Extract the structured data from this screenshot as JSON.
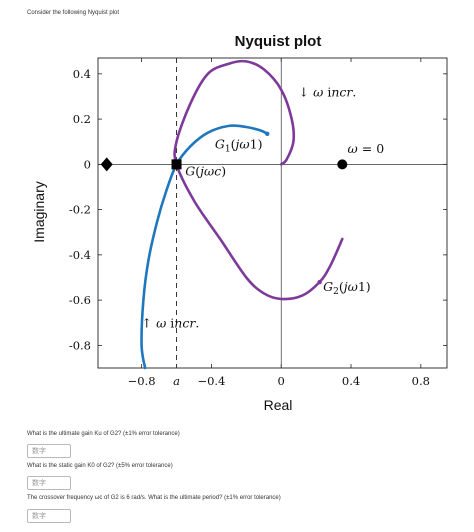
{
  "intro": "Consider the following Nyquist plot",
  "chart_data": {
    "type": "line",
    "title": "Nyquist plot",
    "xlabel": "Real",
    "ylabel": "Imaginary",
    "xlim": [
      -1.05,
      0.95
    ],
    "ylim": [
      -0.9,
      0.47
    ],
    "xticks": [
      {
        "v": -0.8,
        "label": "−0.8"
      },
      {
        "v": -0.6,
        "label": "a"
      },
      {
        "v": -0.4,
        "label": "−0.4"
      },
      {
        "v": 0,
        "label": "0"
      },
      {
        "v": 0.4,
        "label": "0.4"
      },
      {
        "v": 0.8,
        "label": "0.8"
      }
    ],
    "yticks": [
      {
        "v": 0.4,
        "label": "0.4"
      },
      {
        "v": 0.2,
        "label": "0.2"
      },
      {
        "v": 0,
        "label": "0"
      },
      {
        "v": -0.2,
        "label": "-0.2"
      },
      {
        "v": -0.4,
        "label": "-0.4"
      },
      {
        "v": -0.6,
        "label": "-0.6"
      },
      {
        "v": -0.8,
        "label": "-0.8"
      }
    ],
    "grid": false,
    "vline": {
      "x": -0.6,
      "style": "dashed"
    },
    "series": [
      {
        "name": "G1(jω1)",
        "color": "#1f77bd",
        "points": [
          [
            -0.78,
            -0.9
          ],
          [
            -0.8,
            -0.8
          ],
          [
            -0.79,
            -0.6
          ],
          [
            -0.76,
            -0.42
          ],
          [
            -0.71,
            -0.25
          ],
          [
            -0.66,
            -0.12
          ],
          [
            -0.6,
            0
          ],
          [
            -0.52,
            0.08
          ],
          [
            -0.42,
            0.14
          ],
          [
            -0.3,
            0.17
          ],
          [
            -0.2,
            0.165
          ],
          [
            -0.12,
            0.15
          ],
          [
            -0.08,
            0.135
          ]
        ]
      },
      {
        "name": "G2(jω1)",
        "color": "#7d3a9a",
        "points": [
          [
            0.35,
            -0.33
          ],
          [
            0.28,
            -0.45
          ],
          [
            0.22,
            -0.52
          ],
          [
            0.12,
            -0.58
          ],
          [
            0,
            -0.595
          ],
          [
            -0.1,
            -0.57
          ],
          [
            -0.2,
            -0.5
          ],
          [
            -0.35,
            -0.33
          ],
          [
            -0.5,
            -0.16
          ],
          [
            -0.6,
            0
          ],
          [
            -0.6,
            0.1
          ],
          [
            -0.52,
            0.27
          ],
          [
            -0.42,
            0.4
          ],
          [
            -0.3,
            0.445
          ],
          [
            -0.2,
            0.455
          ],
          [
            -0.1,
            0.42
          ],
          [
            0,
            0.33
          ],
          [
            0.06,
            0.2
          ],
          [
            0.07,
            0.1
          ],
          [
            0.03,
            0.02
          ],
          [
            0,
            0
          ]
        ]
      }
    ],
    "markers": [
      {
        "label": "ω = 0",
        "x": 0.35,
        "y": 0,
        "shape": "circle"
      },
      {
        "label": "G(jωc)",
        "x": -0.6,
        "y": 0,
        "shape": "square"
      },
      {
        "label": "",
        "x": -1.0,
        "y": 0,
        "shape": "diamond"
      }
    ],
    "annotations": [
      {
        "text": "↓ ω incr.",
        "x": 0.1,
        "y": 0.3
      },
      {
        "text": "↑ ω incr.",
        "x": -0.8,
        "y": -0.72
      },
      {
        "text": "G1(jω1)",
        "x": -0.38,
        "y": 0.07
      },
      {
        "text": "G(jωc)",
        "x": -0.55,
        "y": -0.05
      },
      {
        "text": "ω = 0",
        "x": 0.38,
        "y": 0.05
      },
      {
        "text": "G2(jω1)",
        "x": 0.24,
        "y": -0.56
      }
    ]
  },
  "questions": [
    {
      "text": "What is the ultimate gain Ku of G2? (±1% error tolerance)",
      "placeholder": "数字",
      "value": ""
    },
    {
      "text": "What is the static gain K0 of G2? (±5% error tolerance)",
      "placeholder": "数字",
      "value": ""
    },
    {
      "text": "The crossover frequency ωc of G2 is 6 rad/s. What is the ultimate period? (±1% error tolerance)",
      "placeholder": "数字",
      "value": ""
    }
  ]
}
